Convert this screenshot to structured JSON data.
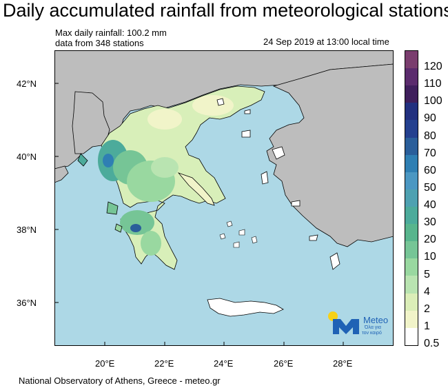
{
  "title": "Daily accumulated rainfall from meteorological stations",
  "info": {
    "max_line": "Max daily rainfall: 100.2 mm",
    "stations_line": "data from 348 stations",
    "time_line": "24 Sep 2019 at 13:00 local time"
  },
  "axes": {
    "lat_labels": [
      "42°N",
      "40°N",
      "38°N",
      "36°N"
    ],
    "lon_labels": [
      "20°E",
      "22°E",
      "24°E",
      "26°E",
      "28°E"
    ]
  },
  "colorbar": {
    "labels": [
      "120",
      "110",
      "100",
      "90",
      "80",
      "70",
      "60",
      "50",
      "40",
      "30",
      "20",
      "10",
      "5",
      "4",
      "2",
      "1",
      "0.5"
    ],
    "colors": [
      "#7a3d6e",
      "#5b2b6d",
      "#3f1f5c",
      "#22307f",
      "#24408f",
      "#2a5e9a",
      "#2f7fb3",
      "#4b97c2",
      "#4ea1b1",
      "#4cab9b",
      "#58b58d",
      "#76c596",
      "#99d8a0",
      "#b9e4b1",
      "#dbeeb8",
      "#f1f4c9",
      "#ffffff"
    ]
  },
  "logo": {
    "name": "Meteo",
    "slogan_1": "Όλα για",
    "slogan_2": "τον καιρό"
  },
  "footer": "National Observatory of Athens, Greece - meteo.gr",
  "palette": {
    "sea": "#add8e6",
    "foreign_land": "#bdbdbd",
    "logo_blue": "#1f62b5",
    "logo_sun": "#f7d117"
  }
}
